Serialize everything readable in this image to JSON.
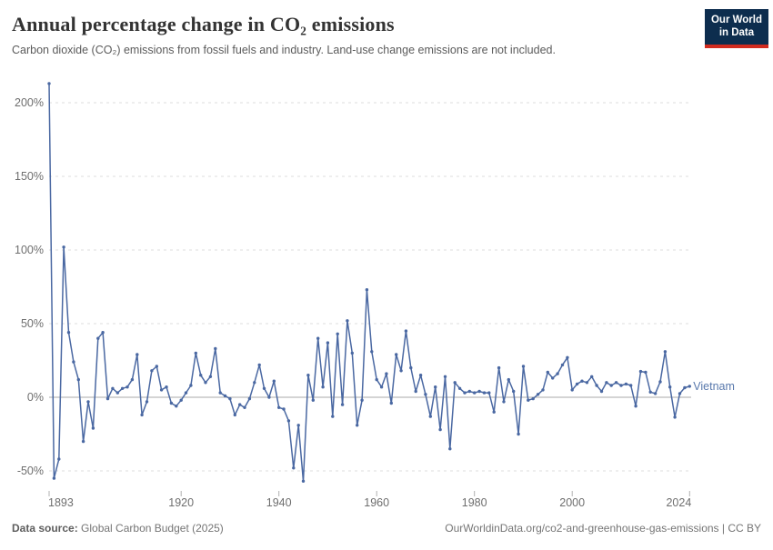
{
  "header": {
    "title": "Annual percentage change in CO₂ emissions",
    "subtitle": "Carbon dioxide (CO₂) emissions from fossil fuels and industry. Land-use change emissions are not included.",
    "logo_line1": "Our World",
    "logo_line2": "in Data"
  },
  "chart_data": {
    "type": "line",
    "title": "Annual percentage change in CO₂ emissions",
    "entity": "Vietnam",
    "start_year": 1893,
    "end_year": 2024,
    "x_tick_years": [
      1893,
      1920,
      1940,
      1960,
      1980,
      2000,
      2024
    ],
    "y_ticks": [
      {
        "value": 200,
        "label": "200%"
      },
      {
        "value": 150,
        "label": "150%"
      },
      {
        "value": 100,
        "label": "100%"
      },
      {
        "value": 50,
        "label": "50%"
      },
      {
        "value": 0,
        "label": "0%"
      },
      {
        "value": -50,
        "label": "-50%"
      }
    ],
    "ylim": [
      -60,
      215
    ],
    "grid": true,
    "legend_position": "end-of-line",
    "series": [
      {
        "name": "Vietnam",
        "values": [
          213,
          -55,
          -42,
          102,
          44,
          24,
          12,
          -30,
          -3,
          -21,
          40,
          44,
          -1,
          6,
          3,
          6,
          7,
          12,
          29,
          -12,
          -3,
          18,
          21,
          5,
          7,
          -4,
          -6,
          -2,
          3,
          8,
          30,
          15,
          10,
          14,
          33,
          3,
          1,
          -1,
          -12,
          -5,
          -7,
          -1,
          10,
          22,
          6,
          0,
          11,
          -7,
          -8,
          -16,
          -48,
          -19,
          -57,
          15,
          -2,
          40,
          7,
          37,
          -13,
          43,
          -5,
          52,
          30,
          -19,
          -2,
          73,
          31,
          12,
          7,
          16,
          -4,
          29,
          18,
          45,
          20,
          4,
          15,
          2,
          -13,
          7,
          -22,
          14,
          -35,
          10,
          6,
          3,
          4,
          3,
          4,
          3,
          3,
          -10,
          20,
          -3,
          12,
          4,
          -25,
          21,
          -2,
          -1,
          2,
          5,
          17,
          13,
          16,
          22,
          27,
          5,
          9,
          11,
          10,
          14,
          8,
          4,
          10,
          8,
          10,
          8,
          9,
          8,
          -6,
          17.5,
          17,
          3.5,
          2.5,
          10.5,
          31,
          7,
          -13.5,
          2.5,
          6.5,
          7.5
        ]
      }
    ],
    "colors": {
      "line": "#4a68a2",
      "series_label": "#5878ac",
      "grid": "#dcdcdc",
      "zero_line": "#a8a8a8",
      "axis_text": "#6e6e6e",
      "tick_mark": "#b0b0b0"
    }
  },
  "footer": {
    "source_label": "Data source:",
    "source_value": " Global Carbon Budget (2025)",
    "url": "OurWorldinData.org/co2-and-greenhouse-gas-emissions | CC BY"
  }
}
